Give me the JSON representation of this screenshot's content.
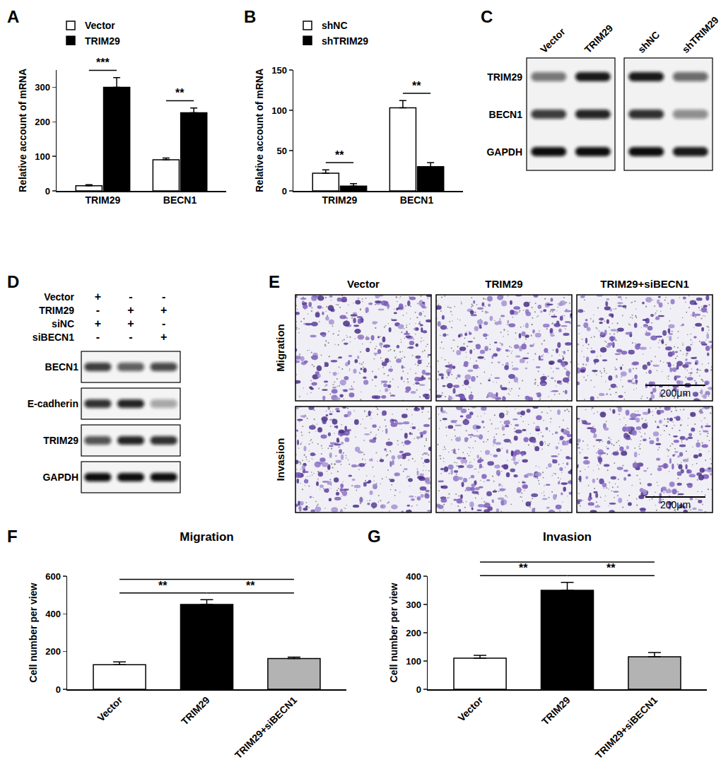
{
  "chart_data": [
    {
      "panel": "A",
      "type": "bar",
      "categories": [
        "TRIM29",
        "BECN1"
      ],
      "series": [
        {
          "name": "Vector",
          "color": "#ffffff",
          "values": [
            15,
            90
          ],
          "errors": [
            3,
            5
          ]
        },
        {
          "name": "TRIM29",
          "color": "#000000",
          "values": [
            300,
            226
          ],
          "errors": [
            28,
            14
          ]
        }
      ],
      "y_label": "Relative account of mRNA",
      "ylim": [
        0,
        350
      ],
      "yticks": [
        0,
        100,
        200,
        300
      ],
      "grid": false,
      "legend": "top left",
      "comparisons": [
        {
          "category": "TRIM29",
          "from": 0,
          "to": 1,
          "text": "***"
        },
        {
          "category": "BECN1",
          "from": 0,
          "to": 1,
          "text": "**"
        }
      ]
    },
    {
      "panel": "B",
      "type": "bar",
      "categories": [
        "TRIM29",
        "BECN1"
      ],
      "series": [
        {
          "name": "shNC",
          "color": "#ffffff",
          "values": [
            22,
            103
          ],
          "errors": [
            4,
            9
          ]
        },
        {
          "name": "shTRIM29",
          "color": "#000000",
          "values": [
            6,
            30
          ],
          "errors": [
            3,
            5
          ]
        }
      ],
      "y_label": "Relative account of mRNA",
      "ylim": [
        0,
        150
      ],
      "yticks": [
        0,
        50,
        100,
        150
      ],
      "grid": false,
      "legend": "top left",
      "comparisons": [
        {
          "category": "TRIM29",
          "from": 0,
          "to": 1,
          "text": "**"
        },
        {
          "category": "BECN1",
          "from": 0,
          "to": 1,
          "text": "**"
        }
      ]
    },
    {
      "panel": "F",
      "type": "bar",
      "title": "Migration",
      "categories": [
        "Vector",
        "TRIM29",
        "TRIM29+siBECN1"
      ],
      "values": [
        130,
        450,
        163
      ],
      "errors": [
        15,
        25,
        8
      ],
      "colors": [
        "#ffffff",
        "#000000",
        "#b3b3b3"
      ],
      "y_label": "Cell number per view",
      "ylim": [
        0,
        600
      ],
      "yticks": [
        0,
        200,
        400,
        600
      ],
      "grid": false,
      "comparisons": [
        {
          "from": 0,
          "to": 1,
          "text": "**"
        },
        {
          "from": 1,
          "to": 2,
          "text": "**"
        },
        {
          "from": 0,
          "to": 2
        }
      ]
    },
    {
      "panel": "G",
      "type": "bar",
      "title": "Invasion",
      "categories": [
        "Vector",
        "TRIM29",
        "TRIM29+siBECN1"
      ],
      "values": [
        110,
        350,
        115
      ],
      "errors": [
        10,
        28,
        15
      ],
      "colors": [
        "#ffffff",
        "#000000",
        "#b3b3b3"
      ],
      "y_label": "Cell number per view",
      "ylim": [
        0,
        400
      ],
      "yticks": [
        0,
        100,
        200,
        300,
        400
      ],
      "grid": false,
      "comparisons": [
        {
          "from": 0,
          "to": 1,
          "text": "**"
        },
        {
          "from": 1,
          "to": 2,
          "text": "**"
        },
        {
          "from": 0,
          "to": 2
        }
      ]
    }
  ],
  "blots": [
    {
      "panel": "C",
      "groups": [
        {
          "lanes": [
            "Vector",
            "TRIM29"
          ],
          "rows": [
            {
              "label": "TRIM29",
              "bands": [
                0.55,
                0.95
              ]
            },
            {
              "label": "BECN1",
              "bands": [
                0.8,
                0.9
              ]
            },
            {
              "label": "GAPDH",
              "bands": [
                1,
                1
              ]
            }
          ]
        },
        {
          "lanes": [
            "shNC",
            "shTRIM29"
          ],
          "rows": [
            {
              "label": "TRIM29",
              "bands": [
                0.95,
                0.6
              ]
            },
            {
              "label": "BECN1",
              "bands": [
                0.85,
                0.45
              ]
            },
            {
              "label": "GAPDH",
              "bands": [
                1,
                0.95
              ]
            }
          ]
        }
      ]
    },
    {
      "panel": "D",
      "conditions": [
        {
          "label": "Vector",
          "signs": [
            "+",
            "-",
            "-"
          ]
        },
        {
          "label": "TRIM29",
          "signs": [
            "-",
            "+",
            "+"
          ]
        },
        {
          "label": "siNC",
          "signs": [
            "+",
            "+",
            "-"
          ]
        },
        {
          "label": "siBECN1",
          "signs": [
            "-",
            "-",
            "+"
          ]
        }
      ],
      "groups": [
        {
          "rows": [
            {
              "label": "BECN1",
              "bands": [
                0.8,
                0.65,
                0.75
              ]
            },
            {
              "label": "E-cadherin",
              "bands": [
                0.85,
                0.9,
                0.35
              ]
            },
            {
              "label": "TRIM29",
              "bands": [
                0.7,
                0.9,
                0.85
              ]
            },
            {
              "label": "GAPDH",
              "bands": [
                1,
                1,
                1
              ]
            }
          ]
        }
      ]
    }
  ],
  "micrographs": {
    "panel": "E",
    "columns": [
      "Vector",
      "TRIM29",
      "TRIM29+siBECN1"
    ],
    "rows": [
      "Migration",
      "Invasion"
    ],
    "scale_bar": "200μm"
  }
}
